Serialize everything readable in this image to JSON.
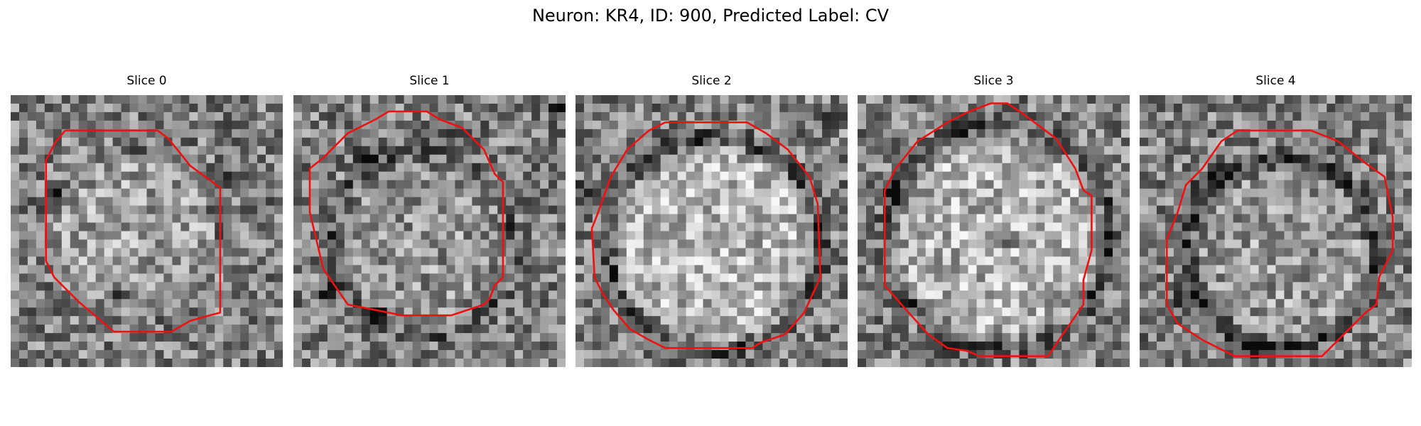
{
  "figure": {
    "title": "Neuron: KR4, ID: 900, Predicted Label: CV",
    "outline_color": "#ee1111",
    "colormap": "gray",
    "panels": [
      {
        "title": "Slice 0",
        "seed": 11,
        "blob": {
          "center": [
            0.44,
            0.52
          ],
          "radius": 0.3,
          "brightness": 0.12,
          "ring_darkness": 0.05
        },
        "dark_spots": [
          [
            0.17,
            0.38,
            0.06
          ],
          [
            0.4,
            0.74,
            0.08
          ],
          [
            0.78,
            0.3,
            0.06
          ]
        ],
        "outline": [
          [
            0.2,
            0.13
          ],
          [
            0.54,
            0.13
          ],
          [
            0.58,
            0.16
          ],
          [
            0.62,
            0.21
          ],
          [
            0.66,
            0.26
          ],
          [
            0.77,
            0.34
          ],
          [
            0.77,
            0.8
          ],
          [
            0.73,
            0.81
          ],
          [
            0.66,
            0.83
          ],
          [
            0.59,
            0.87
          ],
          [
            0.38,
            0.87
          ],
          [
            0.25,
            0.76
          ],
          [
            0.16,
            0.67
          ],
          [
            0.13,
            0.61
          ],
          [
            0.13,
            0.24
          ],
          [
            0.16,
            0.18
          ],
          [
            0.2,
            0.13
          ]
        ]
      },
      {
        "title": "Slice 1",
        "seed": 23,
        "blob": {
          "center": [
            0.47,
            0.55
          ],
          "radius": 0.33,
          "brightness": 0.08,
          "ring_darkness": 0.18
        },
        "dark_spots": [
          [
            0.27,
            0.23,
            0.07
          ],
          [
            0.58,
            0.13,
            0.07
          ],
          [
            0.97,
            0.06,
            0.06
          ],
          [
            0.12,
            0.72,
            0.06
          ],
          [
            0.3,
            0.8,
            0.07
          ]
        ],
        "outline": [
          [
            0.35,
            0.06
          ],
          [
            0.49,
            0.06
          ],
          [
            0.54,
            0.09
          ],
          [
            0.62,
            0.12
          ],
          [
            0.7,
            0.2
          ],
          [
            0.74,
            0.29
          ],
          [
            0.77,
            0.32
          ],
          [
            0.77,
            0.67
          ],
          [
            0.74,
            0.7
          ],
          [
            0.72,
            0.75
          ],
          [
            0.7,
            0.77
          ],
          [
            0.61,
            0.8
          ],
          [
            0.58,
            0.81
          ],
          [
            0.4,
            0.81
          ],
          [
            0.2,
            0.77
          ],
          [
            0.11,
            0.64
          ],
          [
            0.06,
            0.43
          ],
          [
            0.06,
            0.27
          ],
          [
            0.11,
            0.23
          ],
          [
            0.2,
            0.14
          ],
          [
            0.3,
            0.09
          ],
          [
            0.35,
            0.06
          ]
        ]
      },
      {
        "title": "Slice 2",
        "seed": 37,
        "blob": {
          "center": [
            0.51,
            0.55
          ],
          "radius": 0.38,
          "brightness": 0.22,
          "ring_darkness": 0.3
        },
        "dark_spots": [
          [
            0.03,
            0.37,
            0.07
          ],
          [
            0.95,
            0.1,
            0.05
          ]
        ],
        "outline": [
          [
            0.33,
            0.1
          ],
          [
            0.63,
            0.1
          ],
          [
            0.7,
            0.14
          ],
          [
            0.78,
            0.2
          ],
          [
            0.86,
            0.3
          ],
          [
            0.89,
            0.4
          ],
          [
            0.9,
            0.67
          ],
          [
            0.84,
            0.8
          ],
          [
            0.77,
            0.88
          ],
          [
            0.68,
            0.91
          ],
          [
            0.65,
            0.93
          ],
          [
            0.33,
            0.93
          ],
          [
            0.27,
            0.9
          ],
          [
            0.2,
            0.86
          ],
          [
            0.14,
            0.79
          ],
          [
            0.1,
            0.73
          ],
          [
            0.07,
            0.67
          ],
          [
            0.06,
            0.49
          ],
          [
            0.08,
            0.44
          ],
          [
            0.13,
            0.3
          ],
          [
            0.19,
            0.2
          ],
          [
            0.27,
            0.13
          ],
          [
            0.33,
            0.1
          ]
        ]
      },
      {
        "title": "Slice 3",
        "seed": 41,
        "blob": {
          "center": [
            0.52,
            0.52
          ],
          "radius": 0.4,
          "brightness": 0.2,
          "ring_darkness": 0.28
        },
        "dark_spots": [
          [
            0.12,
            0.35,
            0.06
          ],
          [
            0.34,
            0.96,
            0.06
          ],
          [
            0.57,
            0.53,
            0.05
          ]
        ],
        "outline": [
          [
            0.41,
            0.06
          ],
          [
            0.49,
            0.03
          ],
          [
            0.55,
            0.03
          ],
          [
            0.61,
            0.07
          ],
          [
            0.73,
            0.16
          ],
          [
            0.8,
            0.27
          ],
          [
            0.83,
            0.35
          ],
          [
            0.86,
            0.37
          ],
          [
            0.86,
            0.57
          ],
          [
            0.83,
            0.68
          ],
          [
            0.83,
            0.77
          ],
          [
            0.74,
            0.9
          ],
          [
            0.7,
            0.96
          ],
          [
            0.55,
            0.96
          ],
          [
            0.45,
            0.96
          ],
          [
            0.4,
            0.94
          ],
          [
            0.33,
            0.93
          ],
          [
            0.26,
            0.88
          ],
          [
            0.17,
            0.78
          ],
          [
            0.1,
            0.7
          ],
          [
            0.1,
            0.35
          ],
          [
            0.14,
            0.27
          ],
          [
            0.22,
            0.17
          ],
          [
            0.33,
            0.1
          ],
          [
            0.41,
            0.06
          ]
        ]
      },
      {
        "title": "Slice 4",
        "seed": 53,
        "blob": {
          "center": [
            0.52,
            0.58
          ],
          "radius": 0.34,
          "brightness": 0.1,
          "ring_darkness": 0.28
        },
        "dark_spots": [
          [
            0.27,
            0.33,
            0.09
          ],
          [
            0.4,
            0.92,
            0.07
          ],
          [
            0.17,
            0.75,
            0.07
          ]
        ],
        "outline": [
          [
            0.36,
            0.13
          ],
          [
            0.63,
            0.13
          ],
          [
            0.73,
            0.17
          ],
          [
            0.83,
            0.25
          ],
          [
            0.9,
            0.3
          ],
          [
            0.93,
            0.45
          ],
          [
            0.93,
            0.57
          ],
          [
            0.88,
            0.67
          ],
          [
            0.87,
            0.77
          ],
          [
            0.83,
            0.8
          ],
          [
            0.73,
            0.9
          ],
          [
            0.67,
            0.96
          ],
          [
            0.35,
            0.96
          ],
          [
            0.23,
            0.9
          ],
          [
            0.14,
            0.84
          ],
          [
            0.1,
            0.77
          ],
          [
            0.1,
            0.53
          ],
          [
            0.14,
            0.43
          ],
          [
            0.17,
            0.33
          ],
          [
            0.23,
            0.27
          ],
          [
            0.3,
            0.17
          ],
          [
            0.36,
            0.13
          ]
        ]
      }
    ]
  }
}
